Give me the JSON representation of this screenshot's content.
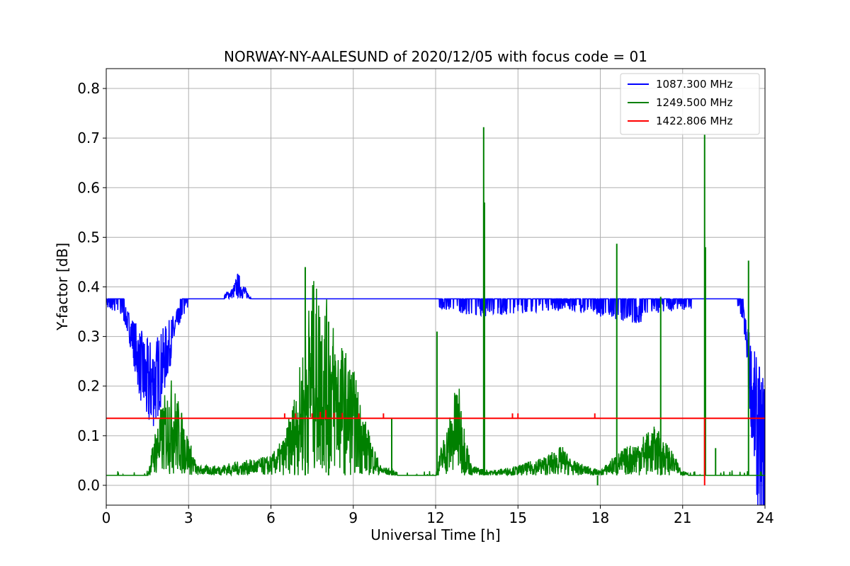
{
  "chart_data": {
    "type": "line",
    "title": "NORWAY-NY-AALESUND of 2020/12/05 with focus code = 01",
    "xlabel": "Universal Time [h]",
    "ylabel": "Y-factor [dB]",
    "xlim": [
      0,
      24
    ],
    "ylim": [
      -0.04,
      0.84
    ],
    "xticks": [
      0,
      3,
      6,
      9,
      12,
      15,
      18,
      21,
      24
    ],
    "yticks": [
      0.0,
      0.1,
      0.2,
      0.3,
      0.4,
      0.5,
      0.6,
      0.7,
      0.8
    ],
    "grid": true,
    "legend_position": "top-right",
    "series": [
      {
        "name": "1087.300 MHz",
        "color": "#0000ff",
        "baseline": 0.376,
        "x": [
          0,
          0.3,
          0.6,
          0.9,
          1.2,
          1.5,
          1.8,
          2.1,
          2.4,
          2.7,
          3.0,
          4.0,
          4.6,
          4.8,
          5.0,
          5.3,
          6.0,
          7.0,
          8.0,
          9.0,
          10.0,
          11.0,
          12.0,
          12.5,
          13.0,
          14.0,
          15.0,
          16.0,
          17.0,
          18.0,
          18.5,
          19.0,
          19.4,
          19.8,
          20.5,
          21.5,
          22.5,
          23.0,
          23.2,
          23.4,
          23.6,
          23.8,
          24.0
        ],
        "y": [
          0.375,
          0.37,
          0.355,
          0.31,
          0.25,
          0.2,
          0.21,
          0.25,
          0.3,
          0.35,
          0.376,
          0.376,
          0.39,
          0.41,
          0.395,
          0.376,
          0.376,
          0.376,
          0.376,
          0.376,
          0.376,
          0.376,
          0.376,
          0.37,
          0.365,
          0.36,
          0.365,
          0.37,
          0.37,
          0.36,
          0.355,
          0.35,
          0.345,
          0.365,
          0.37,
          0.376,
          0.376,
          0.376,
          0.35,
          0.25,
          0.15,
          0.08,
          0.05
        ]
      },
      {
        "name": "1249.500 MHz",
        "color": "#008000",
        "baseline": 0.02,
        "x": [
          0,
          1.5,
          1.8,
          2.1,
          2.4,
          2.7,
          3.0,
          3.3,
          4.0,
          5.0,
          6.0,
          6.5,
          7.0,
          7.5,
          8.0,
          8.5,
          9.0,
          9.5,
          10.0,
          10.5,
          11.0,
          12.0,
          12.2,
          12.5,
          12.8,
          13.0,
          13.3,
          14.0,
          15.0,
          16.0,
          16.6,
          17.0,
          18.0,
          18.5,
          19.0,
          19.5,
          20.0,
          20.5,
          21.0,
          22.0,
          23.0,
          23.5,
          24.0
        ],
        "y": [
          0.02,
          0.02,
          0.07,
          0.1,
          0.12,
          0.09,
          0.06,
          0.03,
          0.03,
          0.035,
          0.04,
          0.06,
          0.12,
          0.22,
          0.2,
          0.16,
          0.13,
          0.07,
          0.03,
          0.025,
          0.02,
          0.02,
          0.05,
          0.08,
          0.12,
          0.08,
          0.03,
          0.025,
          0.03,
          0.04,
          0.05,
          0.035,
          0.025,
          0.04,
          0.05,
          0.06,
          0.07,
          0.05,
          0.025,
          0.02,
          0.02,
          0.02,
          0.02
        ],
        "spikes": [
          {
            "x": 7.25,
            "y": 0.44
          },
          {
            "x": 8.1,
            "y": 0.33
          },
          {
            "x": 10.4,
            "y": 0.135
          },
          {
            "x": 12.05,
            "y": 0.31
          },
          {
            "x": 13.75,
            "y": 0.722
          },
          {
            "x": 13.78,
            "y": 0.57
          },
          {
            "x": 18.6,
            "y": 0.487
          },
          {
            "x": 20.2,
            "y": 0.38
          },
          {
            "x": 21.8,
            "y": 0.708
          },
          {
            "x": 21.83,
            "y": 0.48
          },
          {
            "x": 23.4,
            "y": 0.453
          },
          {
            "x": 22.2,
            "y": 0.075
          },
          {
            "x": 17.9,
            "y": 0.0
          }
        ]
      },
      {
        "name": "1422.806 MHz",
        "color": "#ff0000",
        "baseline": 0.135,
        "blips": [
          {
            "x": 6.5,
            "y": 0.145
          },
          {
            "x": 6.9,
            "y": 0.145
          },
          {
            "x": 7.5,
            "y": 0.145
          },
          {
            "x": 7.8,
            "y": 0.148
          },
          {
            "x": 8.0,
            "y": 0.152
          },
          {
            "x": 8.3,
            "y": 0.146
          },
          {
            "x": 8.6,
            "y": 0.146
          },
          {
            "x": 9.2,
            "y": 0.145
          },
          {
            "x": 10.1,
            "y": 0.145
          },
          {
            "x": 14.8,
            "y": 0.145
          },
          {
            "x": 15.0,
            "y": 0.145
          },
          {
            "x": 17.8,
            "y": 0.145
          },
          {
            "x": 21.8,
            "y": 0.0
          }
        ]
      }
    ]
  }
}
